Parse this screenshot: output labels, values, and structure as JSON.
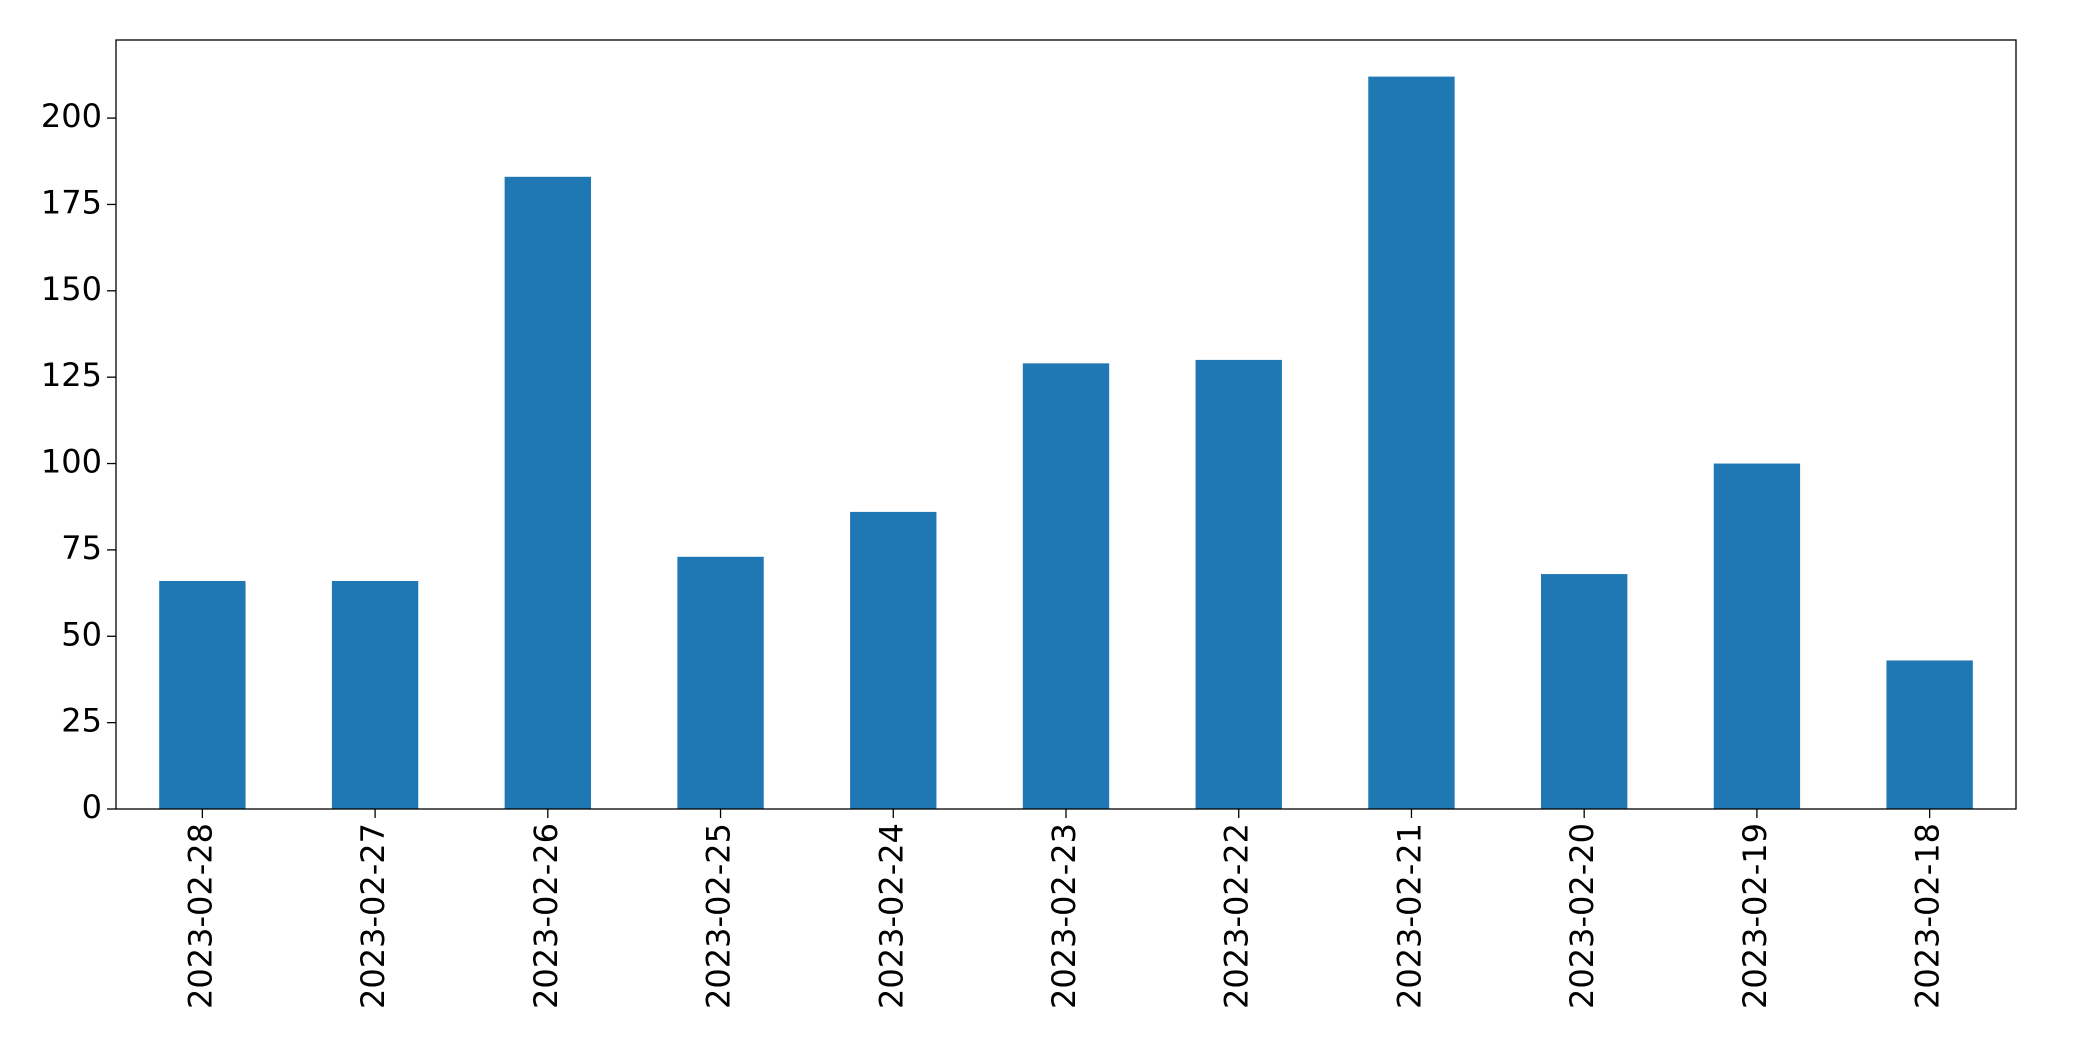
{
  "chart_data": {
    "type": "bar",
    "categories": [
      "2023-02-28",
      "2023-02-27",
      "2023-02-26",
      "2023-02-25",
      "2023-02-24",
      "2023-02-23",
      "2023-02-22",
      "2023-02-21",
      "2023-02-20",
      "2023-02-19",
      "2023-02-18"
    ],
    "values": [
      66,
      66,
      183,
      73,
      86,
      129,
      130,
      212,
      68,
      100,
      43
    ],
    "color": "#1f77b4",
    "ylim": [
      0,
      222.6
    ],
    "yticks": [
      0,
      25,
      50,
      75,
      100,
      125,
      150,
      175,
      200
    ],
    "grid": false
  }
}
